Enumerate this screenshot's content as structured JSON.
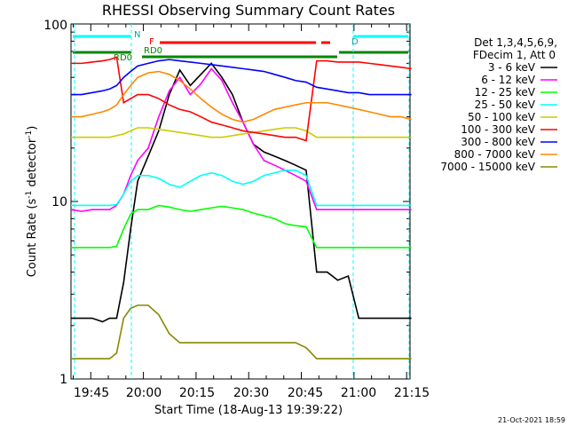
{
  "chart_data": {
    "type": "line",
    "title": "RHESSI Observing Summary Count Rates",
    "xlabel": "Start Time (18-Aug-13 19:39:22)",
    "ylabel": "Count Rate (s",
    "ylabel_sup": "-1",
    "ylabel_tail": " detector",
    "ylabel_sup2": "-1",
    "ylabel_end": ")",
    "yscale": "log",
    "ylim": [
      1,
      100
    ],
    "xlim": [
      "19:39:22",
      "21:16"
    ],
    "x_ticks": [
      "19:45",
      "20:00",
      "20:15",
      "20:30",
      "20:45",
      "21:00",
      "21:15"
    ],
    "y_ticks": [
      "1",
      "10",
      "100"
    ],
    "legend_header": [
      "Det 1,3,4,5,6,9,",
      "FDecim 1, Att 0"
    ],
    "legend_placement": "right",
    "grid": false,
    "annotations": [
      "N",
      "F",
      "RD0",
      "RD0",
      "D"
    ],
    "timestamp": "21-Oct-2021 18:59",
    "x_minutes": [
      0,
      3,
      6,
      9,
      11,
      13,
      15,
      17,
      19,
      22,
      25,
      28,
      31,
      34,
      37,
      40,
      43,
      46,
      49,
      52,
      55,
      58,
      61,
      64,
      67,
      70,
      73,
      76,
      79,
      82,
      85,
      88,
      91,
      94,
      97
    ],
    "series": [
      {
        "name": "3 - 6 keV",
        "color": "#000000",
        "values": [
          2.2,
          2.2,
          2.2,
          2.1,
          2.2,
          2.2,
          3.5,
          7,
          13,
          18,
          25,
          40,
          55,
          45,
          52,
          60,
          50,
          40,
          28,
          21,
          19,
          18,
          17,
          16,
          15,
          4,
          4,
          3.6,
          3.8,
          2.2,
          2.2,
          2.2,
          2.2,
          2.2,
          2.2
        ]
      },
      {
        "name": "6 - 12 keV",
        "color": "#ff00ff",
        "values": [
          9,
          8.8,
          9,
          9,
          9,
          9.5,
          11,
          14,
          17,
          20,
          30,
          42,
          50,
          40,
          46,
          56,
          48,
          36,
          28,
          21,
          17,
          16,
          15,
          14,
          13,
          9,
          9,
          9,
          9,
          9,
          9,
          9,
          9,
          9,
          9
        ]
      },
      {
        "name": "12 - 25 keV",
        "color": "#00ff00",
        "values": [
          5.5,
          5.5,
          5.5,
          5.5,
          5.5,
          5.6,
          7,
          8.5,
          9,
          9,
          9.5,
          9.3,
          9,
          8.8,
          9,
          9.2,
          9.4,
          9.2,
          9,
          8.6,
          8.3,
          8,
          7.5,
          7.3,
          7.2,
          5.5,
          5.5,
          5.5,
          5.5,
          5.5,
          5.5,
          5.5,
          5.5,
          5.5,
          5.5
        ]
      },
      {
        "name": "25 - 50 keV",
        "color": "#00ffff",
        "values": [
          9.5,
          9.5,
          9.5,
          9.5,
          9.5,
          9.6,
          11,
          13,
          14,
          14,
          13.5,
          12.5,
          12,
          13,
          14,
          14.5,
          14,
          13,
          12.5,
          13,
          14,
          14.5,
          15,
          15,
          14,
          9.5,
          9.5,
          9.5,
          9.5,
          9.5,
          9.5,
          9.5,
          9.5,
          9.5,
          9.5
        ]
      },
      {
        "name": "50 - 100 keV",
        "color": "#cccc00",
        "values": [
          23,
          23,
          23,
          23,
          23,
          23.5,
          24,
          25,
          26,
          26,
          25.5,
          25,
          24.5,
          24,
          23.5,
          23,
          23,
          23.5,
          24,
          24.5,
          25,
          25.5,
          26,
          26,
          25,
          23,
          23,
          23,
          23,
          23,
          23,
          23,
          23,
          23,
          23
        ]
      },
      {
        "name": "100 - 300 keV",
        "color": "#ff0000",
        "values": [
          60,
          60,
          61,
          62,
          63,
          65,
          36,
          38,
          40,
          40,
          38,
          35,
          33,
          32,
          30,
          28,
          27,
          26,
          25,
          24.5,
          24,
          23.5,
          23,
          23,
          22,
          62,
          62,
          61,
          61,
          61,
          60,
          59,
          58,
          57,
          56
        ]
      },
      {
        "name": "300 - 800 keV",
        "color": "#0000ff",
        "values": [
          40,
          40,
          41,
          42,
          43,
          45,
          50,
          54,
          58,
          60,
          62,
          63,
          62,
          61,
          60,
          59,
          58,
          57,
          56,
          55,
          54,
          52,
          50,
          48,
          47,
          44,
          43,
          42,
          41,
          41,
          40,
          40,
          40,
          40,
          40
        ]
      },
      {
        "name": "800 - 7000 keV",
        "color": "#ff8800",
        "values": [
          30,
          30,
          31,
          32,
          33,
          35,
          40,
          45,
          50,
          53,
          54,
          52,
          48,
          43,
          38,
          34,
          31,
          29,
          28,
          29,
          31,
          33,
          34,
          35,
          36,
          36,
          36,
          35,
          34,
          33,
          32,
          31,
          30,
          30,
          29
        ]
      },
      {
        "name": "7000 - 15000 keV",
        "color": "#888800",
        "values": [
          1.3,
          1.3,
          1.3,
          1.3,
          1.3,
          1.4,
          2.2,
          2.5,
          2.6,
          2.6,
          2.3,
          1.8,
          1.6,
          1.6,
          1.6,
          1.6,
          1.6,
          1.6,
          1.6,
          1.6,
          1.6,
          1.6,
          1.6,
          1.6,
          1.5,
          1.3,
          1.3,
          1.3,
          1.3,
          1.3,
          1.3,
          1.3,
          1.3,
          1.3,
          1.3
        ]
      }
    ]
  }
}
